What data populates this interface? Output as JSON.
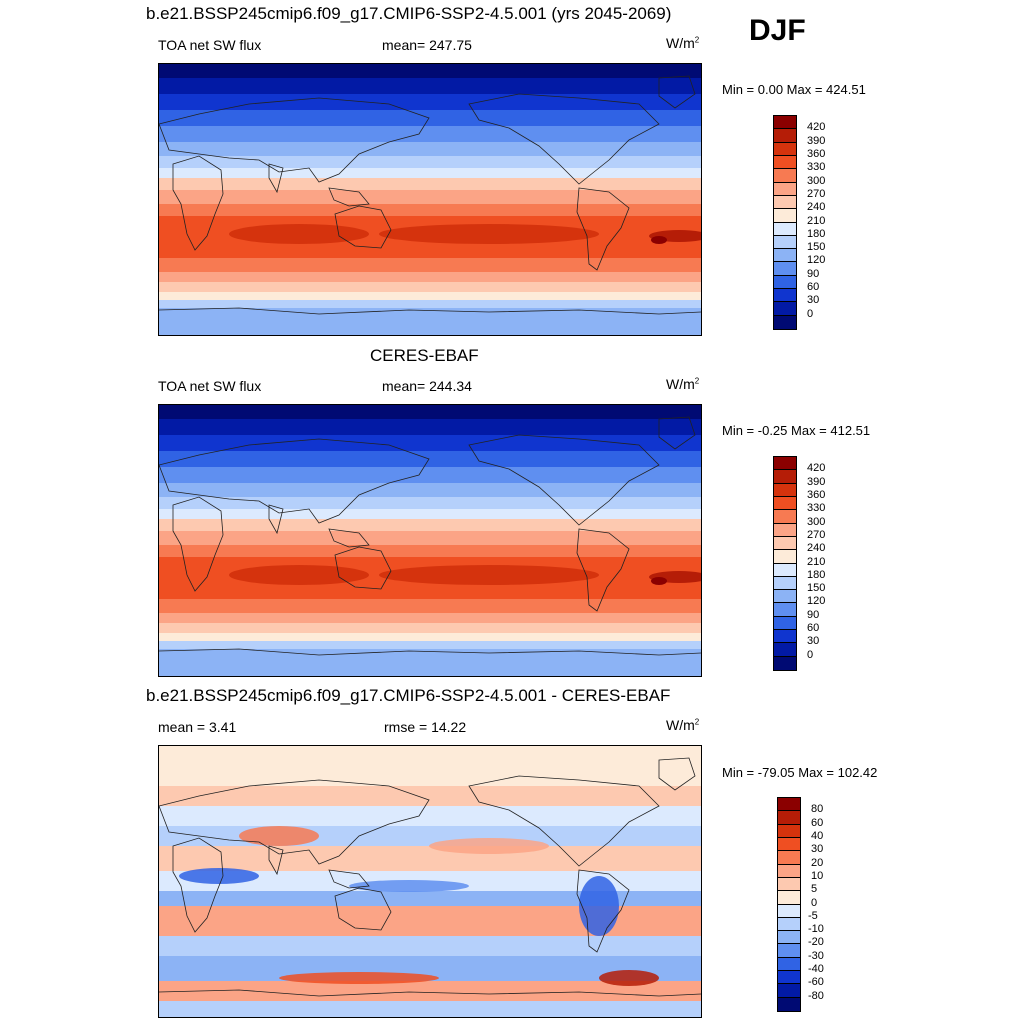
{
  "season": "DJF",
  "panels": [
    {
      "title": "b.e21.BSSP245cmip6.f09_g17.CMIP6-SSP2-4.5.001 (yrs 2045-2069)",
      "left_text": "TOA net SW flux",
      "center_text": "mean= 247.75",
      "units": "W/m",
      "units_sup": "2",
      "minmax": "Min =   0.00 Max = 424.51"
    },
    {
      "title": "CERES-EBAF",
      "left_text": "TOA net SW flux",
      "center_text": "mean= 244.34",
      "units": "W/m",
      "units_sup": "2",
      "minmax": "Min =  -0.25 Max = 412.51"
    },
    {
      "title": "b.e21.BSSP245cmip6.f09_g17.CMIP6-SSP2-4.5.001 - CERES-EBAF",
      "left_text": "mean =   3.41",
      "center_text": "rmse =  14.22",
      "units": "W/m",
      "units_sup": "2",
      "minmax": "Min = -79.05 Max = 102.42"
    }
  ],
  "chart_data": [
    {
      "type": "heatmap",
      "title": "b.e21.BSSP245cmip6.f09_g17.CMIP6-SSP2-4.5.001 (yrs 2045-2069)",
      "variable": "TOA net SW flux",
      "season": "DJF",
      "mean": 247.75,
      "min": 0.0,
      "max": 424.51,
      "units": "W/m2",
      "colorbar_levels": [
        420,
        390,
        360,
        330,
        300,
        270,
        240,
        210,
        180,
        150,
        120,
        90,
        60,
        30,
        0
      ],
      "colors": [
        "#8b0000",
        "#b51d07",
        "#d5330d",
        "#ef4f22",
        "#f77a52",
        "#fba486",
        "#fdc9b0",
        "#fdebd9",
        "#dceafe",
        "#b5d0fb",
        "#8cb3f5",
        "#5f8ff0",
        "#3063e4",
        "#1035cf",
        "#021aa5",
        "#000a73"
      ]
    },
    {
      "type": "heatmap",
      "title": "CERES-EBAF",
      "variable": "TOA net SW flux",
      "season": "DJF",
      "mean": 244.34,
      "min": -0.25,
      "max": 412.51,
      "units": "W/m2",
      "colorbar_levels": [
        420,
        390,
        360,
        330,
        300,
        270,
        240,
        210,
        180,
        150,
        120,
        90,
        60,
        30,
        0
      ],
      "colors": [
        "#8b0000",
        "#b51d07",
        "#d5330d",
        "#ef4f22",
        "#f77a52",
        "#fba486",
        "#fdc9b0",
        "#fdebd9",
        "#dceafe",
        "#b5d0fb",
        "#8cb3f5",
        "#5f8ff0",
        "#3063e4",
        "#1035cf",
        "#021aa5",
        "#000a73"
      ]
    },
    {
      "type": "heatmap",
      "title": "b.e21.BSSP245cmip6.f09_g17.CMIP6-SSP2-4.5.001 - CERES-EBAF",
      "season": "DJF",
      "mean": 3.41,
      "rmse": 14.22,
      "min": -79.05,
      "max": 102.42,
      "units": "W/m2",
      "colorbar_levels": [
        80,
        60,
        40,
        30,
        20,
        10,
        5,
        0,
        -5,
        -10,
        -20,
        -30,
        -40,
        -60,
        -80
      ],
      "colors": [
        "#8b0000",
        "#b51d07",
        "#d5330d",
        "#ef4f22",
        "#f77a52",
        "#fba486",
        "#fdc9b0",
        "#fdebd9",
        "#dceafe",
        "#b5d0fb",
        "#8cb3f5",
        "#5f8ff0",
        "#3063e4",
        "#1035cf",
        "#021aa5",
        "#000a73"
      ]
    }
  ]
}
